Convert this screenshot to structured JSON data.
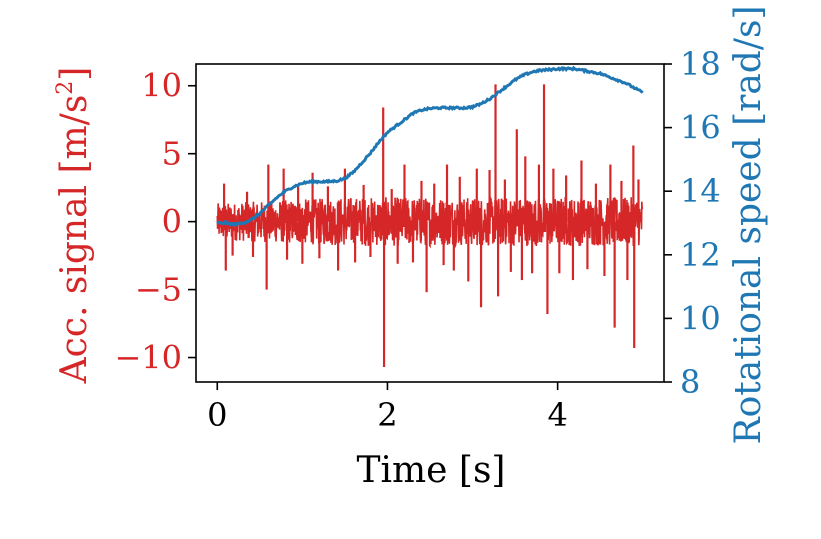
{
  "chart_data": {
    "type": "line",
    "xlabel": "Time [s]",
    "xlim": [
      -0.25,
      5.25
    ],
    "xticks": [
      0,
      2,
      4
    ],
    "xtick_labels": [
      "0",
      "2",
      "4"
    ],
    "left_axis": {
      "label_main": "Acc. signal [m/s",
      "label_sup": "2",
      "label_end": "]",
      "color": "#d62728",
      "ylim": [
        -11.8,
        11.6
      ],
      "ticks": [
        -10,
        -5,
        0,
        5,
        10
      ],
      "tick_labels": [
        "−10",
        "−5",
        "0",
        "5",
        "10"
      ]
    },
    "right_axis": {
      "label": "Rotational speed [rad/s]",
      "color": "#1f77b4",
      "ylim": [
        8,
        18
      ],
      "ticks": [
        8,
        10,
        12,
        14,
        16,
        18
      ],
      "tick_labels": [
        "8",
        "10",
        "12",
        "14",
        "16",
        "18"
      ]
    },
    "series": [
      {
        "axis": "left",
        "color": "#d62728",
        "noise_amplitude": 1.8,
        "x_range": [
          0,
          5
        ],
        "spikes": [
          {
            "x": 0.08,
            "y": 2.8
          },
          {
            "x": 0.1,
            "y": -3.6
          },
          {
            "x": 0.18,
            "y": -2.5
          },
          {
            "x": 0.35,
            "y": 2.2
          },
          {
            "x": 0.42,
            "y": -2.6
          },
          {
            "x": 0.58,
            "y": -5.0
          },
          {
            "x": 0.6,
            "y": 4.2
          },
          {
            "x": 0.78,
            "y": 3.9
          },
          {
            "x": 0.82,
            "y": -2.8
          },
          {
            "x": 0.95,
            "y": 2.6
          },
          {
            "x": 1.0,
            "y": -3.1
          },
          {
            "x": 1.12,
            "y": 3.6
          },
          {
            "x": 1.2,
            "y": -2.7
          },
          {
            "x": 1.3,
            "y": 2.6
          },
          {
            "x": 1.42,
            "y": -3.6
          },
          {
            "x": 1.5,
            "y": 3.9
          },
          {
            "x": 1.62,
            "y": -3.0
          },
          {
            "x": 1.72,
            "y": 2.7
          },
          {
            "x": 1.8,
            "y": -2.6
          },
          {
            "x": 1.95,
            "y": 8.4
          },
          {
            "x": 1.96,
            "y": -10.7
          },
          {
            "x": 2.05,
            "y": 2.4
          },
          {
            "x": 2.12,
            "y": -3.1
          },
          {
            "x": 2.2,
            "y": 4.2
          },
          {
            "x": 2.3,
            "y": -3.0
          },
          {
            "x": 2.4,
            "y": 3.0
          },
          {
            "x": 2.46,
            "y": -5.2
          },
          {
            "x": 2.55,
            "y": 2.8
          },
          {
            "x": 2.66,
            "y": -3.2
          },
          {
            "x": 2.7,
            "y": 4.2
          },
          {
            "x": 2.78,
            "y": -3.6
          },
          {
            "x": 2.85,
            "y": 3.3
          },
          {
            "x": 2.95,
            "y": -4.4
          },
          {
            "x": 3.05,
            "y": 3.9
          },
          {
            "x": 3.1,
            "y": -6.3
          },
          {
            "x": 3.2,
            "y": 3.8
          },
          {
            "x": 3.27,
            "y": 10.1
          },
          {
            "x": 3.3,
            "y": -5.5
          },
          {
            "x": 3.38,
            "y": 3.1
          },
          {
            "x": 3.45,
            "y": -3.7
          },
          {
            "x": 3.52,
            "y": 6.8
          },
          {
            "x": 3.58,
            "y": -4.3
          },
          {
            "x": 3.62,
            "y": 4.8
          },
          {
            "x": 3.7,
            "y": -3.8
          },
          {
            "x": 3.78,
            "y": 4.2
          },
          {
            "x": 3.84,
            "y": 10.1
          },
          {
            "x": 3.88,
            "y": -6.8
          },
          {
            "x": 3.95,
            "y": 3.9
          },
          {
            "x": 4.02,
            "y": -3.8
          },
          {
            "x": 4.1,
            "y": 3.4
          },
          {
            "x": 4.18,
            "y": -4.3
          },
          {
            "x": 4.28,
            "y": 4.5
          },
          {
            "x": 4.35,
            "y": -3.5
          },
          {
            "x": 4.45,
            "y": 2.8
          },
          {
            "x": 4.55,
            "y": -4.0
          },
          {
            "x": 4.62,
            "y": 4.2
          },
          {
            "x": 4.67,
            "y": -7.8
          },
          {
            "x": 4.75,
            "y": 3.0
          },
          {
            "x": 4.82,
            "y": -4.3
          },
          {
            "x": 4.89,
            "y": 5.6
          },
          {
            "x": 4.9,
            "y": -9.3
          },
          {
            "x": 4.95,
            "y": 3.1
          }
        ]
      },
      {
        "axis": "right",
        "color": "#1f77b4",
        "x": [
          0,
          0.1,
          0.2,
          0.3,
          0.4,
          0.5,
          0.6,
          0.7,
          0.8,
          0.9,
          1.0,
          1.1,
          1.2,
          1.3,
          1.4,
          1.5,
          1.6,
          1.7,
          1.8,
          1.9,
          2.0,
          2.1,
          2.2,
          2.3,
          2.4,
          2.5,
          2.6,
          2.7,
          2.8,
          2.9,
          3.0,
          3.1,
          3.2,
          3.3,
          3.4,
          3.5,
          3.6,
          3.7,
          3.8,
          3.9,
          4.0,
          4.1,
          4.2,
          4.3,
          4.4,
          4.5,
          4.6,
          4.7,
          4.8,
          4.9,
          5.0
        ],
        "y": [
          13.0,
          13.0,
          12.95,
          13.0,
          13.1,
          13.3,
          13.55,
          13.8,
          14.0,
          14.15,
          14.25,
          14.3,
          14.3,
          14.3,
          14.32,
          14.4,
          14.6,
          14.9,
          15.2,
          15.55,
          15.85,
          16.05,
          16.25,
          16.45,
          16.55,
          16.6,
          16.62,
          16.62,
          16.62,
          16.62,
          16.65,
          16.75,
          16.9,
          17.1,
          17.3,
          17.5,
          17.65,
          17.75,
          17.8,
          17.82,
          17.85,
          17.85,
          17.85,
          17.8,
          17.75,
          17.7,
          17.6,
          17.5,
          17.4,
          17.25,
          17.1
        ]
      }
    ]
  }
}
